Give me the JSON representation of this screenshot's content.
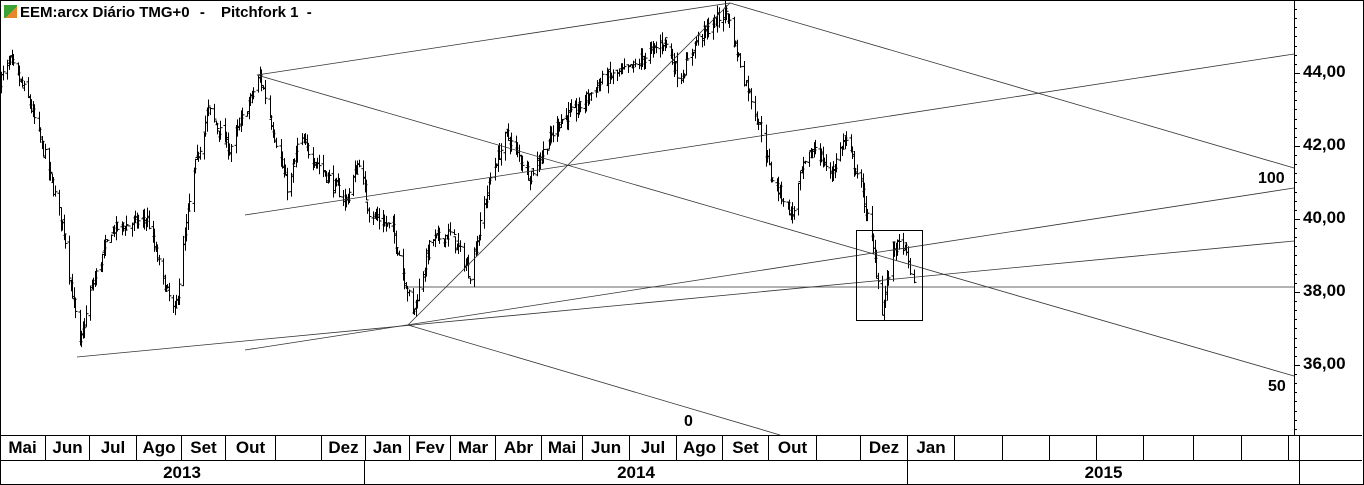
{
  "header": {
    "symbol_title": "EEM:arcx Diário TMG+0",
    "dropdown_marker": "-",
    "study_title": "Pitchfork 1",
    "logo_icon": "app-logo-icon"
  },
  "annotations": {
    "label_100": "100",
    "label_50": "50",
    "label_0": "0"
  },
  "colors": {
    "bars": "#000000",
    "lines": "#333333",
    "background": "#ffffff"
  },
  "chart_data": {
    "type": "ohlc-bar",
    "title": "EEM:arcx Diário TMG+0",
    "ylim": [
      34.08,
      46.0
    ],
    "y_ticks": [
      "44,00",
      "42,00",
      "40,00",
      "38,00",
      "36,00"
    ],
    "y_tick_values": [
      44,
      42,
      40,
      38,
      36
    ],
    "x_month_labels": [
      "Mai",
      "Jun",
      "Jul",
      "Ago",
      "Set",
      "Out",
      "",
      "Dez",
      "Jan",
      "Fev",
      "Mar",
      "Abr",
      "Mai",
      "Jun",
      "Jul",
      "Ago",
      "Set",
      "Out",
      "",
      "Dez",
      "Jan",
      "",
      "",
      "",
      "",
      "",
      "",
      "",
      ""
    ],
    "x_year_labels": [
      "2013",
      "2014",
      "2015"
    ],
    "price_path": [
      [
        "2013-05-01",
        43.8
      ],
      [
        "2013-05-08",
        44.3
      ],
      [
        "2013-05-20",
        43.3
      ],
      [
        "2013-06-03",
        41.3
      ],
      [
        "2013-06-13",
        39.7
      ],
      [
        "2013-06-24",
        36.5
      ],
      [
        "2013-07-01",
        38.0
      ],
      [
        "2013-07-15",
        39.7
      ],
      [
        "2013-08-08",
        40.0
      ],
      [
        "2013-08-19",
        38.3
      ],
      [
        "2013-08-27",
        37.4
      ],
      [
        "2013-09-09",
        41.3
      ],
      [
        "2013-09-19",
        43.0
      ],
      [
        "2013-10-03",
        41.9
      ],
      [
        "2013-10-22",
        43.9
      ],
      [
        "2013-11-09",
        40.7
      ],
      [
        "2013-11-16",
        42.2
      ],
      [
        "2013-12-06",
        41.1
      ],
      [
        "2013-12-18",
        40.5
      ],
      [
        "2013-12-27",
        41.6
      ],
      [
        "2014-01-03",
        40.2
      ],
      [
        "2014-01-20",
        39.7
      ],
      [
        "2014-02-03",
        37.4
      ],
      [
        "2014-02-15",
        39.4
      ],
      [
        "2014-03-01",
        39.6
      ],
      [
        "2014-03-14",
        38.5
      ],
      [
        "2014-03-29",
        41.3
      ],
      [
        "2014-04-08",
        42.3
      ],
      [
        "2014-04-23",
        41.2
      ],
      [
        "2014-05-14",
        42.7
      ],
      [
        "2014-05-28",
        43.0
      ],
      [
        "2014-06-13",
        43.8
      ],
      [
        "2014-07-01",
        44.1
      ],
      [
        "2014-07-24",
        44.9
      ],
      [
        "2014-08-03",
        43.8
      ],
      [
        "2014-08-14",
        44.9
      ],
      [
        "2014-09-03",
        45.7
      ],
      [
        "2014-09-13",
        44.1
      ],
      [
        "2014-09-26",
        42.4
      ],
      [
        "2014-10-02",
        41.2
      ],
      [
        "2014-10-16",
        40.1
      ],
      [
        "2014-10-22",
        41.3
      ],
      [
        "2014-10-31",
        42.0
      ],
      [
        "2014-11-10",
        41.2
      ],
      [
        "2014-11-20",
        42.2
      ],
      [
        "2014-12-01",
        40.9
      ],
      [
        "2014-12-08",
        39.4
      ],
      [
        "2014-12-15",
        37.5
      ],
      [
        "2014-12-22",
        39.2
      ],
      [
        "2014-12-29",
        39.3
      ],
      [
        "2015-01-05",
        38.1
      ]
    ]
  }
}
